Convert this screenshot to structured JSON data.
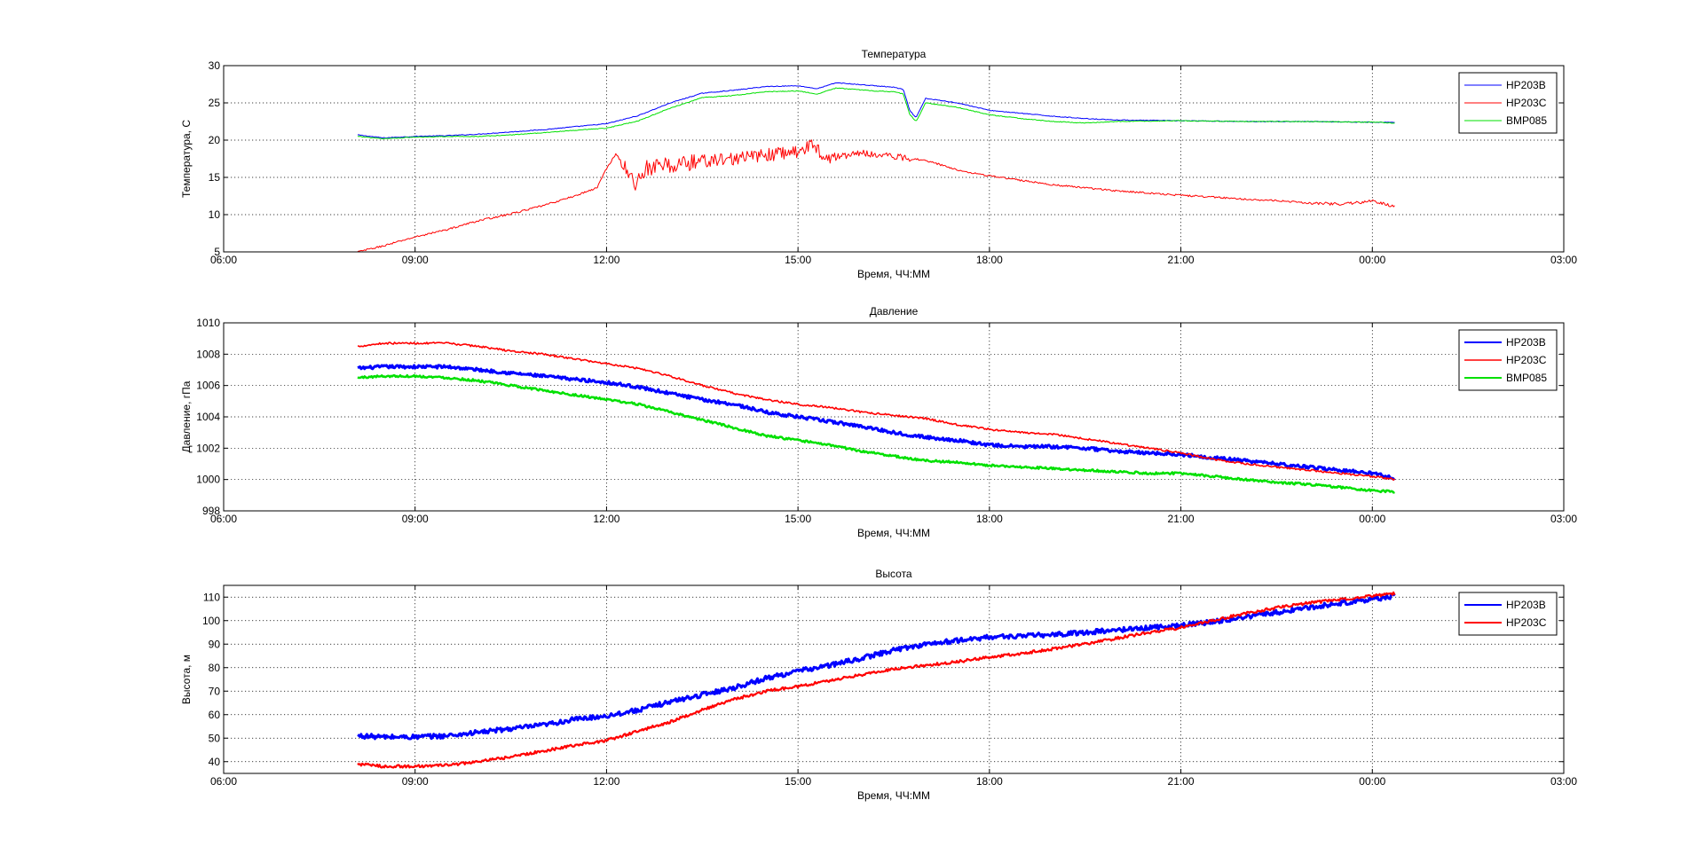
{
  "chart_data": [
    {
      "type": "line",
      "title": "Температура",
      "xlabel": "Время, ЧЧ:ММ",
      "ylabel": "Температура, С",
      "xlim": [
        6,
        27
      ],
      "ylim": [
        5,
        30
      ],
      "xticks": [
        6,
        9,
        12,
        15,
        18,
        21,
        24,
        27
      ],
      "xticklabels": [
        "06:00",
        "09:00",
        "12:00",
        "15:00",
        "18:00",
        "21:00",
        "00:00",
        "03:00"
      ],
      "yticks": [
        5,
        10,
        15,
        20,
        25,
        30
      ],
      "yticklabels": [
        "5",
        "10",
        "15",
        "20",
        "25",
        "30"
      ],
      "grid": true,
      "legend": "top-right",
      "series": [
        {
          "name": "HP203B",
          "color": "#0000ff",
          "linewidth": 1,
          "noise": 0.05,
          "x": [
            8.1,
            8.5,
            9.0,
            9.5,
            10.0,
            10.5,
            11.0,
            11.5,
            12.0,
            12.5,
            13.0,
            13.5,
            14.0,
            14.5,
            15.0,
            15.3,
            15.6,
            15.9,
            16.2,
            16.5,
            16.65,
            16.75,
            16.85,
            17.0,
            17.5,
            18.0,
            18.5,
            19.0,
            19.5,
            20.0,
            21.0,
            22.0,
            23.0,
            24.0,
            24.35
          ],
          "y": [
            20.7,
            20.3,
            20.5,
            20.6,
            20.8,
            21.1,
            21.4,
            21.8,
            22.2,
            23.3,
            25.0,
            26.3,
            26.7,
            27.2,
            27.3,
            26.9,
            27.7,
            27.5,
            27.3,
            27.1,
            26.8,
            24.0,
            23.0,
            25.6,
            25.0,
            24.0,
            23.6,
            23.2,
            22.9,
            22.7,
            22.6,
            22.5,
            22.5,
            22.4,
            22.4
          ]
        },
        {
          "name": "HP203C",
          "color": "#ff0000",
          "linewidth": 1,
          "noise": 0.12,
          "x": [
            8.1,
            8.5,
            9.0,
            9.5,
            10.0,
            10.5,
            11.0,
            11.5,
            11.85,
            12.0,
            12.15,
            12.3,
            12.45,
            12.6,
            13.0,
            13.5,
            14.0,
            14.5,
            15.0,
            15.2,
            15.5,
            16.0,
            16.5,
            17.0,
            17.5,
            18.0,
            18.5,
            19.0,
            19.5,
            20.0,
            21.0,
            22.0,
            23.0,
            23.5,
            24.0,
            24.35
          ],
          "y": [
            5.0,
            5.8,
            7.0,
            8.0,
            9.2,
            10.1,
            11.2,
            12.5,
            13.6,
            16.2,
            18.2,
            16.0,
            14.0,
            16.2,
            16.6,
            17.2,
            17.5,
            18.0,
            18.5,
            19.3,
            17.6,
            18.3,
            17.8,
            17.3,
            16.0,
            15.2,
            14.6,
            14.0,
            13.6,
            13.2,
            12.6,
            12.1,
            11.6,
            11.4,
            11.8,
            11.1
          ],
          "jitter": [
            [
              12.2,
              13.4,
              1.2
            ],
            [
              13.4,
              15.6,
              0.9
            ],
            [
              15.6,
              16.8,
              0.45
            ],
            [
              22.8,
              24.35,
              0.2
            ]
          ]
        },
        {
          "name": "BMP085",
          "color": "#00e000",
          "linewidth": 1,
          "noise": 0.05,
          "x": [
            8.1,
            8.5,
            9.0,
            9.5,
            10.0,
            10.5,
            11.0,
            11.5,
            12.0,
            12.5,
            13.0,
            13.5,
            14.0,
            14.5,
            15.0,
            15.3,
            15.6,
            15.9,
            16.2,
            16.5,
            16.65,
            16.75,
            16.85,
            17.0,
            17.5,
            18.0,
            18.5,
            19.0,
            19.5,
            20.0,
            21.0,
            22.0,
            23.0,
            24.0,
            24.35
          ],
          "y": [
            20.5,
            20.2,
            20.4,
            20.5,
            20.5,
            20.7,
            21.0,
            21.3,
            21.6,
            22.6,
            24.3,
            25.7,
            26.0,
            26.5,
            26.6,
            26.2,
            27.0,
            26.8,
            26.6,
            26.5,
            26.2,
            23.5,
            22.5,
            25.0,
            24.4,
            23.4,
            22.9,
            22.5,
            22.3,
            22.5,
            22.6,
            22.5,
            22.5,
            22.4,
            22.3
          ]
        }
      ]
    },
    {
      "type": "line",
      "title": "Давление",
      "xlabel": "Время, ЧЧ:ММ",
      "ylabel": "Давление, гПа",
      "xlim": [
        6,
        27
      ],
      "ylim": [
        998,
        1010
      ],
      "xticks": [
        6,
        9,
        12,
        15,
        18,
        21,
        24,
        27
      ],
      "xticklabels": [
        "06:00",
        "09:00",
        "12:00",
        "15:00",
        "18:00",
        "21:00",
        "00:00",
        "03:00"
      ],
      "yticks": [
        998,
        1000,
        1002,
        1004,
        1006,
        1008,
        1010
      ],
      "yticklabels": [
        "998",
        "1000",
        "1002",
        "1004",
        "1006",
        "1008",
        "1010"
      ],
      "grid": true,
      "legend": "top-right",
      "series": [
        {
          "name": "HP203B",
          "color": "#0000ff",
          "linewidth": 3,
          "noise": 0.1,
          "x": [
            8.1,
            8.5,
            9.0,
            9.5,
            10.0,
            10.5,
            11.0,
            11.5,
            12.0,
            12.5,
            13.0,
            13.5,
            14.0,
            14.5,
            15.0,
            15.5,
            16.0,
            16.5,
            17.0,
            17.5,
            18.0,
            18.5,
            19.0,
            19.5,
            20.0,
            20.5,
            21.0,
            21.5,
            22.0,
            22.5,
            23.0,
            23.5,
            24.0,
            24.35
          ],
          "y": [
            1007.1,
            1007.2,
            1007.2,
            1007.2,
            1007.0,
            1006.8,
            1006.6,
            1006.4,
            1006.2,
            1005.9,
            1005.5,
            1005.1,
            1004.8,
            1004.3,
            1004.0,
            1003.7,
            1003.4,
            1003.0,
            1002.7,
            1002.5,
            1002.2,
            1002.1,
            1002.1,
            1002.0,
            1001.8,
            1001.7,
            1001.6,
            1001.4,
            1001.2,
            1001.0,
            1000.8,
            1000.6,
            1000.4,
            1000.1
          ]
        },
        {
          "name": "HP203C",
          "color": "#ff0000",
          "linewidth": 1.6,
          "noise": 0.06,
          "x": [
            8.1,
            8.5,
            9.0,
            9.5,
            10.0,
            10.5,
            11.0,
            11.5,
            12.0,
            12.5,
            13.0,
            13.5,
            14.0,
            14.5,
            15.0,
            15.5,
            16.0,
            16.5,
            17.0,
            17.5,
            18.0,
            18.5,
            19.0,
            19.5,
            20.0,
            20.5,
            21.0,
            21.5,
            22.0,
            22.5,
            23.0,
            23.5,
            24.0,
            24.35
          ],
          "y": [
            1008.5,
            1008.7,
            1008.7,
            1008.7,
            1008.5,
            1008.2,
            1008.0,
            1007.7,
            1007.4,
            1007.1,
            1006.6,
            1006.0,
            1005.5,
            1005.1,
            1004.8,
            1004.6,
            1004.3,
            1004.1,
            1003.9,
            1003.5,
            1003.2,
            1003.0,
            1002.9,
            1002.6,
            1002.3,
            1002.0,
            1001.7,
            1001.3,
            1001.0,
            1000.8,
            1000.6,
            1000.4,
            1000.2,
            1000.0
          ]
        },
        {
          "name": "BMP085",
          "color": "#00e000",
          "linewidth": 2.5,
          "noise": 0.07,
          "x": [
            8.1,
            8.5,
            9.0,
            9.5,
            10.0,
            10.5,
            11.0,
            11.5,
            12.0,
            12.5,
            13.0,
            13.5,
            14.0,
            14.5,
            15.0,
            15.5,
            16.0,
            16.5,
            17.0,
            17.5,
            18.0,
            18.5,
            19.0,
            19.5,
            20.0,
            20.5,
            21.0,
            21.5,
            22.0,
            22.5,
            23.0,
            23.5,
            24.0,
            24.35
          ],
          "y": [
            1006.5,
            1006.6,
            1006.6,
            1006.5,
            1006.3,
            1006.0,
            1005.7,
            1005.4,
            1005.1,
            1004.8,
            1004.3,
            1003.8,
            1003.3,
            1002.8,
            1002.5,
            1002.2,
            1001.8,
            1001.5,
            1001.2,
            1001.1,
            1000.9,
            1000.8,
            1000.7,
            1000.6,
            1000.5,
            1000.4,
            1000.4,
            1000.2,
            1000.0,
            999.8,
            999.7,
            999.5,
            999.3,
            999.2
          ]
        }
      ]
    },
    {
      "type": "line",
      "title": "Высота",
      "xlabel": "Время, ЧЧ:ММ",
      "ylabel": "Высота, м",
      "xlim": [
        6,
        27
      ],
      "ylim": [
        35,
        115
      ],
      "xticks": [
        6,
        9,
        12,
        15,
        18,
        21,
        24,
        27
      ],
      "xticklabels": [
        "06:00",
        "09:00",
        "12:00",
        "15:00",
        "18:00",
        "21:00",
        "00:00",
        "03:00"
      ],
      "yticks": [
        40,
        50,
        60,
        70,
        80,
        90,
        100,
        110
      ],
      "yticklabels": [
        "40",
        "50",
        "60",
        "70",
        "80",
        "90",
        "100",
        "110"
      ],
      "grid": true,
      "legend": "top-right",
      "series": [
        {
          "name": "HP203B",
          "color": "#0000ff",
          "linewidth": 3,
          "noise": 1.0,
          "x": [
            8.1,
            8.5,
            9.0,
            9.5,
            10.0,
            10.5,
            11.0,
            11.5,
            12.0,
            12.5,
            13.0,
            13.5,
            14.0,
            14.5,
            15.0,
            15.5,
            16.0,
            16.5,
            17.0,
            17.5,
            18.0,
            18.5,
            19.0,
            19.5,
            20.0,
            20.5,
            21.0,
            21.5,
            22.0,
            22.5,
            23.0,
            23.5,
            24.0,
            24.35
          ],
          "y": [
            51,
            50.5,
            50.5,
            51,
            52.5,
            54,
            55.5,
            58,
            59.5,
            62,
            65.5,
            68.5,
            71.5,
            75.5,
            78.5,
            81,
            84,
            87.5,
            90,
            91.5,
            93,
            93.5,
            94,
            95,
            96,
            97,
            98,
            99.5,
            101.5,
            103.5,
            105.5,
            107.5,
            109,
            110.5
          ]
        },
        {
          "name": "HP203C",
          "color": "#ff0000",
          "linewidth": 2.2,
          "noise": 0.6,
          "x": [
            8.1,
            8.5,
            9.0,
            9.5,
            10.0,
            10.5,
            11.0,
            11.5,
            12.0,
            12.5,
            13.0,
            13.5,
            14.0,
            14.5,
            15.0,
            15.5,
            16.0,
            16.5,
            17.0,
            17.5,
            18.0,
            18.5,
            19.0,
            19.5,
            20.0,
            20.5,
            21.0,
            21.5,
            22.0,
            22.5,
            23.0,
            23.5,
            24.0,
            24.35
          ],
          "y": [
            39,
            38,
            38,
            38.5,
            40,
            42,
            44.5,
            47,
            49,
            53,
            57,
            62,
            66.5,
            70,
            72,
            74.5,
            77,
            79.5,
            81,
            82.5,
            84.5,
            86,
            88,
            90,
            92.5,
            95,
            97,
            100,
            103,
            105.5,
            107.5,
            109,
            110.5,
            111.5
          ]
        }
      ]
    }
  ]
}
